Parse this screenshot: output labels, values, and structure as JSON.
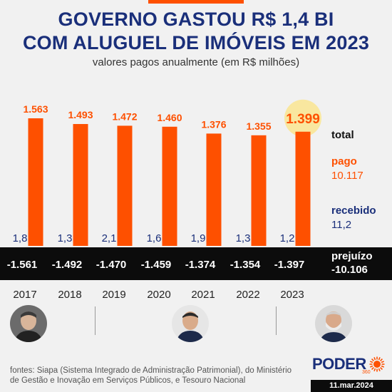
{
  "colors": {
    "orange": "#fe5000",
    "navy": "#1a2f7a",
    "band": "#0c0c0c",
    "highlight": "#f9e79f"
  },
  "title_line1": "GOVERNO GASTOU R$ 1,4 BI",
  "title_line2": "COM ALUGUEL DE IMÓVEIS EM 2023",
  "subtitle": "valores pagos anualmente (em R$ milhões)",
  "chart_data": {
    "type": "bar",
    "categories": [
      "2017",
      "2018",
      "2019",
      "2020",
      "2021",
      "2022",
      "2023"
    ],
    "series": [
      {
        "name": "pago",
        "values": [
          1563,
          1493,
          1472,
          1460,
          1376,
          1355,
          1399
        ],
        "labels": [
          "1.563",
          "1.493",
          "1.472",
          "1.460",
          "1.376",
          "1.355",
          "1.399"
        ]
      },
      {
        "name": "recebido",
        "values": [
          1.8,
          1.3,
          2.1,
          1.6,
          1.9,
          1.3,
          1.2
        ],
        "labels": [
          "1,8",
          "1,3",
          "2,1",
          "1,6",
          "1,9",
          "1,3",
          "1,2"
        ]
      },
      {
        "name": "prejuízo",
        "values": [
          -1561,
          -1492,
          -1470,
          -1459,
          -1374,
          -1354,
          -1397
        ],
        "labels": [
          "-1.561",
          "-1.492",
          "-1.470",
          "-1.459",
          "-1.374",
          "-1.354",
          "-1.397"
        ]
      }
    ],
    "ylim": [
      0,
      1600
    ],
    "highlight_category": "2023",
    "grid": false,
    "legend": "right"
  },
  "legend": {
    "total_label": "total",
    "pago_label": "pago",
    "pago_total": "10.117",
    "recebido_label": "recebido",
    "recebido_total": "11,2",
    "prejuizo_label": "prejuízo",
    "prejuizo_total": "-10.106"
  },
  "footer": {
    "source": "fontes: Siapa (Sistema Integrado de Administração Patrimonial), do Ministério de Gestão e Inovação em Serviços Públicos, e Tesouro Nacional",
    "logo": "PODER",
    "logo_sub": "360",
    "date": "11.mar.2024"
  },
  "portraits": [
    "portrait-2017-icon",
    "portrait-2019-2022-icon",
    "portrait-2023-icon"
  ]
}
